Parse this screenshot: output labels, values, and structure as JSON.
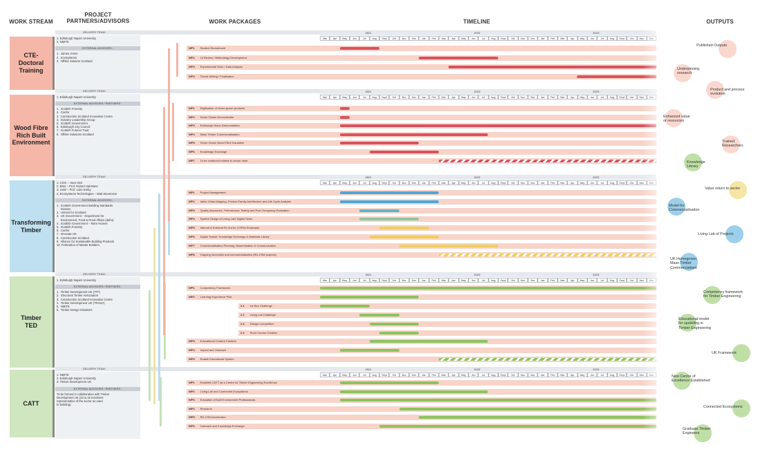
{
  "headers": {
    "workstream": "WORK STREAM",
    "partners": "PROJECT PARTNERS/ADVISORS",
    "workpackages": "WORK PACKAGES",
    "timeline": "TIMELINE",
    "outputs": "OUTPUTS"
  },
  "delivery_label": "DELIVERY TEAM :",
  "external_advisors_label": "EXTERNAL ADVISORS :",
  "external_advisors_partners_label": "EXTERNAL ADVISORS / PARTNERS :",
  "years": [
    "2021",
    "2022",
    "2023"
  ],
  "months": [
    "Mar",
    "Apr",
    "May",
    "Jun",
    "Jul",
    "Aug",
    "Sept",
    "Oct",
    "Nov",
    "Dec",
    "Jan",
    "Feb",
    "Mar",
    "Apr",
    "May",
    "Jun",
    "Jul",
    "Aug",
    "Sept",
    "Oct",
    "Nov",
    "Dec",
    "Jan",
    "Feb",
    "Mar",
    "Apr",
    "May",
    "Jun",
    "Jul",
    "Aug",
    "Sept",
    "Oct",
    "Nov",
    "Dec"
  ],
  "colors": {
    "pink": "#f8d3c8",
    "pink_text": "#f2a08d",
    "red": "#d8525e",
    "blue": "#4aa8d8",
    "yellow": "#efcf5a",
    "green": "#8bc45e",
    "cte": "#f5b7a8",
    "wood": "#f5b7a8",
    "trans": "#bfe0f0",
    "ted": "#cfe6c0",
    "catt": "#cfe6c0"
  },
  "streams": [
    {
      "name": "CTE-\nDoctoral\nTraining",
      "delivery": [
        "1.  Edinburgh Napier University",
        "2.  NMITE"
      ],
      "adv_label_key": "external_advisors_label",
      "advisors": [
        "1.  James Jones",
        "2.  EcoSystems",
        "3.  Offsite Solution Scotland"
      ],
      "wps": [
        {
          "code": "WP1",
          "label": "Student Recruitment"
        },
        {
          "code": "WP2",
          "label": "Lit Review / Methodolgy Development"
        },
        {
          "code": "WP3",
          "label": "Experimental Work / Data Analysis"
        },
        {
          "code": "WP4",
          "label": "Thesis Writing / Finalisation"
        }
      ]
    },
    {
      "name": "Wood Fibre\nRich Built\nEnvironment",
      "delivery": [
        "1.  Edinburgh Napier University"
      ],
      "adv_label_key": "external_advisors_partners_label",
      "advisors": [
        "1.  Scottish Forestry",
        "2.  Confor",
        "3.  Construction Scotland Innovation Centre",
        "4.  Industry Leadership Group",
        "5.  Scottish Government",
        "6.  Edinburgh City Council",
        "7.  Scottish Futures Trust",
        "8.  Offsite Solutions Scotland"
      ],
      "wps": [
        {
          "code": "WP1",
          "label": "Digitisation of Home-grown products"
        },
        {
          "code": "WP2",
          "label": "Home Grown Demonstrator"
        },
        {
          "code": "WP3",
          "label": "Edinburgh Home Demonstration"
        },
        {
          "code": "WP4",
          "label": "Mass Timber Commercialisation"
        },
        {
          "code": "WP5",
          "label": "Home Grown Wood Fibre Insulation"
        },
        {
          "code": "WP6",
          "label": "Knowledge Exchange"
        },
        {
          "code": "WP7",
          "label": "To be continued relative to sector need"
        }
      ]
    },
    {
      "name": "Transforming\nTimber",
      "delivery": [
        "1.  CSIC – Sam Hart",
        "2.  BNU – Prof. Robert Hairstans",
        "3.  UoW – Prof. Luke Emby",
        "4.  EcoSystems Technologies – Matt Stevenson"
      ],
      "adv_label_key": "external_advisors_label",
      "advisors": [
        "1.  Scottish Government Building Standards",
        "     Division",
        "2.  Homes for Scotland",
        "3.  UK Government – Department for",
        "     Environment, Food & Rural Affairs (defra)",
        "4.  Scottish Government – More Homes",
        "5.  Scottish Forestry",
        "6.  Confor",
        "7.  Innovate UK",
        "8.  Construction Scotland",
        "9.  Alliance for Sustainable Building Products",
        "10. Federation of Master Builders"
      ],
      "wps": [
        {
          "code": "WP1",
          "label": "Project Management"
        },
        {
          "code": "WP2",
          "label": "Value Chain Mapping, Product Family Architecture and Life Cycle Analysis"
        },
        {
          "code": "WP3",
          "label": "Quality Assurance, Performance Testing and Post Occupancy Evaluation"
        },
        {
          "code": "WP4",
          "label": "System Design of Living Lab/ Digital Twins"
        },
        {
          "code": "WP5",
          "label": "Internal & External Fit Out for COP26 Showcase"
        },
        {
          "code": "WP6",
          "label": "Digital Toolset, Knowledge Exchange & Materials Library"
        },
        {
          "code": "WP7",
          "label": "Commercialisation Planning, Dissemination & Communication"
        },
        {
          "code": "WP8",
          "label": "Ongoing innovation and commercialisation (RD-CSM projects)"
        }
      ]
    },
    {
      "name": "Timber\nTED",
      "delivery": [
        "1.  Edinburgh Napier University"
      ],
      "adv_label_key": "external_advisors_partners_label",
      "advisors": [
        "1.  Timber Development UK (TTF)",
        "2.  Structural Timber Association",
        "3.  Construction Scotland Innovation Centre",
        "4.  Timber Development UK (TRADA)",
        "5.  NMITE",
        "6.  Timber Design Initiatives"
      ],
      "wps": [
        {
          "code": "WP1",
          "label": "Competency Framework"
        },
        {
          "code": "WP2",
          "label": "Learning Experience Pilot"
        },
        {
          "code": "2.1",
          "label": "Ice Box Challenge"
        },
        {
          "code": "2.2",
          "label": "Living Lab Challenge"
        },
        {
          "code": "2.3",
          "label": "Design Competition"
        },
        {
          "code": "2.4",
          "label": "Short Course Creation"
        },
        {
          "code": "WP3",
          "label": "Educational Content Creation"
        },
        {
          "code": "WP4",
          "label": "Impact and Outreach"
        },
        {
          "code": "WP5",
          "label": "Enable Educational System"
        }
      ]
    },
    {
      "name": "CATT",
      "delivery": [
        "1.  NMITE",
        "2.  Edinburgh Napier University",
        "3.  Timber Development UK"
      ],
      "adv_label_key": "external_advisors_partners_label",
      "advisors": [
        "To be formed in collaboration with Timber",
        "Development UK (circa 15 members",
        "representative of the sector as used",
        "to building)"
      ],
      "wps": [
        {
          "code": "WP1",
          "label": "Establish CATT as a Centre for Timber Engineering Excellence"
        },
        {
          "code": "WP2",
          "label": "Living Lab and Connected Ecosystems"
        },
        {
          "code": "WP3",
          "label": "Education of Built Environment Professionals"
        },
        {
          "code": "WP4",
          "label": "Research"
        },
        {
          "code": "WP5",
          "label": "RD-CSM Accelerator"
        },
        {
          "code": "WP6",
          "label": "Outreach and Knowledge Exchange"
        }
      ]
    }
  ],
  "outputs": [
    {
      "label": "Published Outputs",
      "color": "#f5b7a8"
    },
    {
      "label": "Underpinning\nresearch",
      "color": "#f5b7a8"
    },
    {
      "label": "Product and process\nevolution",
      "color": "#f5b7a8"
    },
    {
      "label": "Enhanced value\nor resources",
      "color": "#f5b7a8"
    },
    {
      "label": "Trained\nResearchers",
      "color": "#f5b7a8"
    },
    {
      "label": "Knowledge\nLibrary",
      "color": "#8bc45e"
    },
    {
      "label": "Value return to sector",
      "color": "#efcf5a"
    },
    {
      "label": "Model for\nCommercialisation",
      "color": "#4aa8d8"
    },
    {
      "label": "Living Lab of Projects",
      "color": "#4aa8d8"
    },
    {
      "label": "UK Homegrown\nMass Timber\nCommercialised",
      "color": "#4aa8d8"
    },
    {
      "label": "Competency framework\nfor Timber Engineering",
      "color": "#8bc45e"
    },
    {
      "label": "Educational model\nfor upskilling in\nTimber Engineering",
      "color": "#8bc45e"
    },
    {
      "label": "UK Framework",
      "color": "#8bc45e"
    },
    {
      "label": "New Centre of\nExcellence Established",
      "color": "#8bc45e"
    },
    {
      "label": "Connected Ecosystems",
      "color": "#8bc45e"
    },
    {
      "label": "Graduate Timber\nEngineers",
      "color": "#8bc45e"
    }
  ]
}
